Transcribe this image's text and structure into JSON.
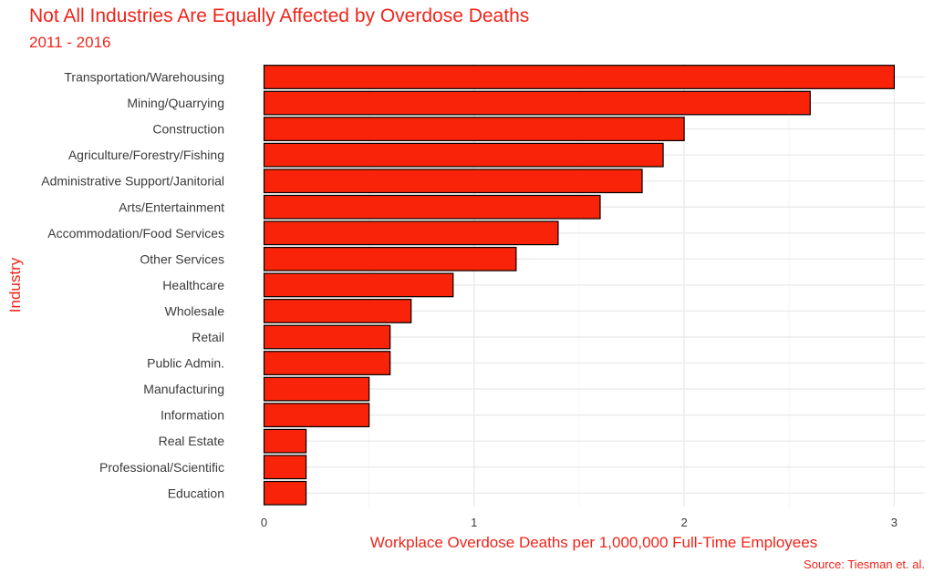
{
  "chart_data": {
    "type": "bar",
    "orientation": "horizontal",
    "title": "Not All Industries Are Equally Affected by Overdose Deaths",
    "subtitle": "2011 - 2016",
    "caption": "Source: Tiesman et. al.",
    "xlabel": "Workplace Overdose Deaths per 1,000,000 Full-Time Employees",
    "ylabel": "Industry",
    "xlim": [
      0,
      3.1
    ],
    "x_ticks": [
      "0",
      "1",
      "2",
      "3"
    ],
    "grid": true,
    "bar_color": "#f82309",
    "bar_outline_color": "#000000",
    "text_color": "#f0241a",
    "categories": [
      "Transportation/Warehousing",
      "Mining/Quarrying",
      "Construction",
      "Agriculture/Forestry/Fishing",
      "Administrative Support/Janitorial",
      "Arts/Entertainment",
      "Accommodation/Food Services",
      "Other Services",
      "Healthcare",
      "Wholesale",
      "Retail",
      "Public Admin.",
      "Manufacturing",
      "Information",
      "Real Estate",
      "Professional/Scientific",
      "Education"
    ],
    "values": [
      3.0,
      2.6,
      2.0,
      1.9,
      1.8,
      1.6,
      1.4,
      1.2,
      0.9,
      0.7,
      0.6,
      0.6,
      0.5,
      0.5,
      0.2,
      0.2,
      0.2
    ]
  }
}
